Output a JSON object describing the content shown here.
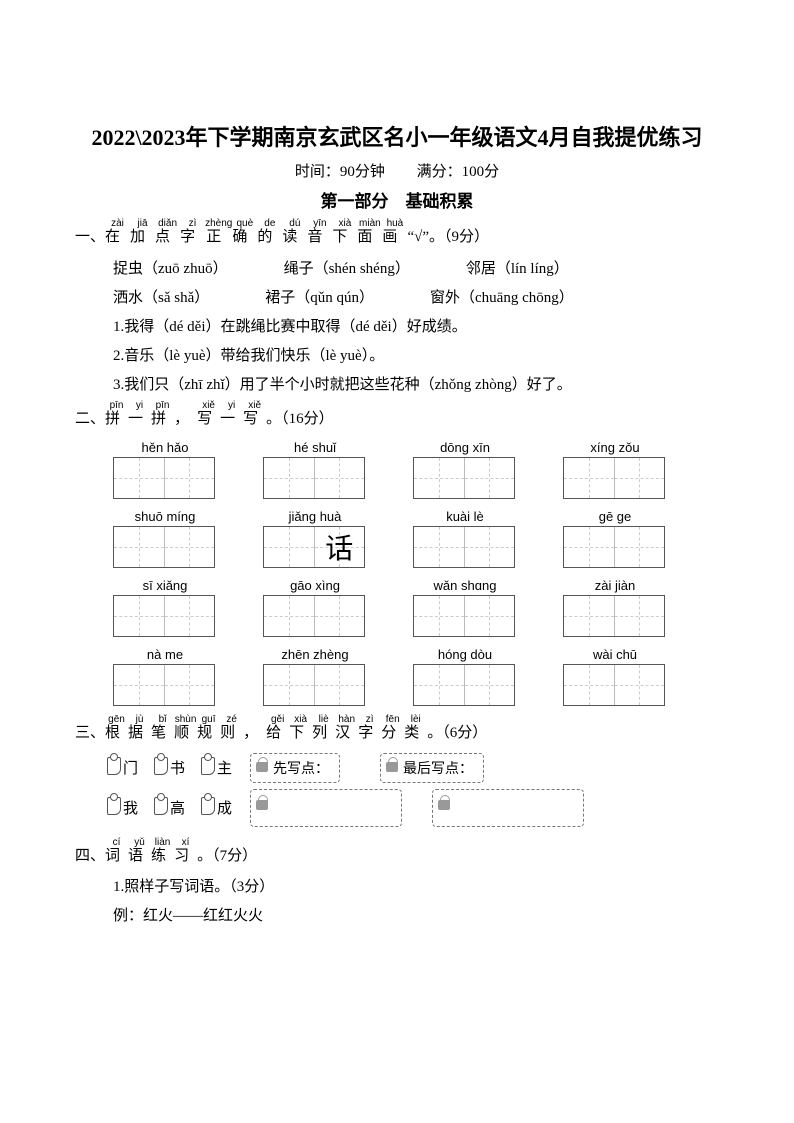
{
  "title": "2022\\2023年下学期南京玄武区名小一年级语文4月自我提优练习",
  "meta": {
    "time_label": "时间：90分钟",
    "score_label": "满分：100分"
  },
  "part1": "第一部分　基础积累",
  "q1": {
    "num": "一、",
    "rubies": [
      {
        "c": "在",
        "p": "zài"
      },
      {
        "c": "加",
        "p": "jiā"
      },
      {
        "c": "点",
        "p": "diǎn"
      },
      {
        "c": "字",
        "p": "zì"
      },
      {
        "c": "正",
        "p": "zhèng"
      },
      {
        "c": "确",
        "p": "què"
      },
      {
        "c": "的",
        "p": "de"
      },
      {
        "c": "读",
        "p": "dú"
      },
      {
        "c": "音",
        "p": "yīn"
      },
      {
        "c": "下",
        "p": "xià"
      },
      {
        "c": "面",
        "p": "miàn"
      },
      {
        "c": "画",
        "p": "huà"
      }
    ],
    "tail": "“√”。（9分）",
    "row1": [
      "捉虫（zuō  zhuō）",
      "绳子（shén  shéng）",
      "邻居（lín  líng）"
    ],
    "row2": [
      "洒水（sǎ  shǎ）",
      "裙子（qǔn  qún）",
      "窗外（chuāng  chōng）"
    ],
    "s1": "1.我得（dé  děi）在跳绳比赛中取得（dé  děi）好成绩。",
    "s2": "2.音乐（lè  yuè）带给我们快乐（lè  yuè）。",
    "s3": "3.我们只（zhī  zhǐ）用了半个小时就把这些花种（zhǒng  zhòng）好了。"
  },
  "q2": {
    "num": "二、",
    "rubies": [
      {
        "c": "拼",
        "p": "pīn"
      },
      {
        "c": "一",
        "p": "yi"
      },
      {
        "c": "拼",
        "p": "pīn"
      },
      {
        "c": "，",
        "p": ""
      },
      {
        "c": "写",
        "p": "xiě"
      },
      {
        "c": "一",
        "p": "yi"
      },
      {
        "c": "写",
        "p": "xiě"
      }
    ],
    "tail": "。（16分）",
    "rows": [
      [
        {
          "p": "hěn  hǎo",
          "boxes": 2,
          "fill": [
            "",
            ""
          ]
        },
        {
          "p": "hé  shuǐ",
          "boxes": 2,
          "fill": [
            "",
            ""
          ]
        },
        {
          "p": "dōng  xīn",
          "boxes": 2,
          "fill": [
            "",
            ""
          ]
        },
        {
          "p": "xíng zǒu",
          "boxes": 2,
          "fill": [
            "",
            ""
          ]
        }
      ],
      [
        {
          "p": "shuō míng",
          "boxes": 2,
          "fill": [
            "",
            ""
          ]
        },
        {
          "p": "jiǎng huà",
          "boxes": 2,
          "fill": [
            "",
            "话"
          ]
        },
        {
          "p": "kuài  lè",
          "boxes": 2,
          "fill": [
            "",
            ""
          ]
        },
        {
          "p": "gē   ge",
          "boxes": 2,
          "fill": [
            "",
            ""
          ]
        }
      ],
      [
        {
          "p": "sī  xiǎng",
          "boxes": 2,
          "fill": [
            "",
            ""
          ]
        },
        {
          "p": "gāo  xìng",
          "boxes": 2,
          "fill": [
            "",
            ""
          ]
        },
        {
          "p": "wǎn  shɑng",
          "boxes": 2,
          "fill": [
            "",
            ""
          ]
        },
        {
          "p": "zài jiàn",
          "boxes": 2,
          "fill": [
            "",
            ""
          ]
        }
      ],
      [
        {
          "p": "nà   me",
          "boxes": 2,
          "fill": [
            "",
            ""
          ]
        },
        {
          "p": "zhēn zhèng",
          "boxes": 2,
          "fill": [
            "",
            ""
          ]
        },
        {
          "p": "hóng  dòu",
          "boxes": 2,
          "fill": [
            "",
            ""
          ]
        },
        {
          "p": "wài  chū",
          "boxes": 2,
          "fill": [
            "",
            ""
          ]
        }
      ]
    ]
  },
  "q3": {
    "num": "三、",
    "rubies": [
      {
        "c": "根",
        "p": "gēn"
      },
      {
        "c": "据",
        "p": "jù"
      },
      {
        "c": "笔",
        "p": "bǐ"
      },
      {
        "c": "顺",
        "p": "shùn"
      },
      {
        "c": "规",
        "p": "guī"
      },
      {
        "c": "则",
        "p": "zé"
      },
      {
        "c": "，",
        "p": ""
      },
      {
        "c": "给",
        "p": "gěi"
      },
      {
        "c": "下",
        "p": "xià"
      },
      {
        "c": "列",
        "p": "liè"
      },
      {
        "c": "汉",
        "p": "hàn"
      },
      {
        "c": "字",
        "p": "zì"
      },
      {
        "c": "分",
        "p": "fēn"
      },
      {
        "c": "类",
        "p": "lèi"
      }
    ],
    "tail": "。（6分）",
    "tags1": [
      "门",
      "书",
      "主"
    ],
    "lock1": "先写点：",
    "lock2": "最后写点：",
    "tags2": [
      "我",
      "高",
      "成"
    ]
  },
  "q4": {
    "num": "四、",
    "rubies": [
      {
        "c": "词",
        "p": "cí"
      },
      {
        "c": "语",
        "p": "yǔ"
      },
      {
        "c": "练",
        "p": "liàn"
      },
      {
        "c": "习",
        "p": "xí"
      }
    ],
    "tail": "。（7分）",
    "s1": "1.照样子写词语。（3分）",
    "s2": "例：红火——红红火火"
  }
}
